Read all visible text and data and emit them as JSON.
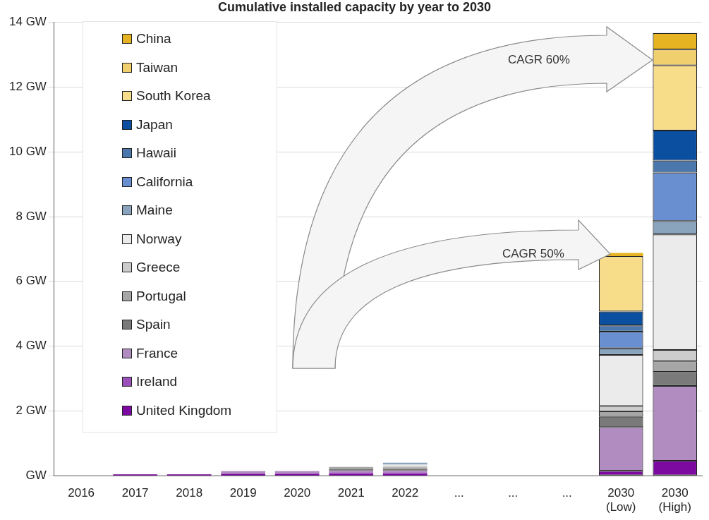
{
  "chart_data": {
    "type": "bar",
    "title": "Cumulative installed capacity by year to 2030",
    "stacked": true,
    "grid": "y",
    "legend": "top left",
    "categories": [
      "2016",
      "2017",
      "2018",
      "2019",
      "2020",
      "2021",
      "2022",
      "...",
      "...",
      "...",
      "2030 (Low)",
      "2030 (High)"
    ],
    "ylim": [
      0,
      14
    ],
    "yticks": [
      {
        "value": 0,
        "label": "GW"
      },
      {
        "value": 2,
        "label": "2 GW"
      },
      {
        "value": 4,
        "label": "4 GW"
      },
      {
        "value": 6,
        "label": "6 GW"
      },
      {
        "value": 8,
        "label": "8 GW"
      },
      {
        "value": 10,
        "label": "10 GW"
      },
      {
        "value": 12,
        "label": "12 GW"
      },
      {
        "value": 14,
        "label": "14 GW"
      }
    ],
    "annotations": [
      "CAGR 60%",
      "CAGR 50%"
    ],
    "series": [
      {
        "name": "United Kingdom",
        "color": "#7d0aa0",
        "values": [
          null,
          0.04,
          0.04,
          0.06,
          0.06,
          0.06,
          0.06,
          null,
          null,
          null,
          0.15,
          0.46
        ]
      },
      {
        "name": "Ireland",
        "color": "#9a50b8",
        "values": [
          null,
          null,
          null,
          null,
          null,
          0.04,
          0.04,
          null,
          null,
          null,
          null,
          null
        ]
      },
      {
        "name": "France",
        "color": "#b08cc0",
        "values": [
          null,
          null,
          null,
          0.08,
          0.08,
          0.05,
          0.05,
          null,
          null,
          null,
          1.35,
          2.31
        ]
      },
      {
        "name": "Spain",
        "color": "#7a7a7a",
        "values": [
          null,
          null,
          null,
          null,
          null,
          0.06,
          0.06,
          null,
          null,
          null,
          0.32,
          0.43
        ]
      },
      {
        "name": "Portugal",
        "color": "#a6a6a6",
        "values": [
          null,
          null,
          null,
          null,
          null,
          0.06,
          0.05,
          null,
          null,
          null,
          0.17,
          0.33
        ]
      },
      {
        "name": "Greece",
        "color": "#cccccc",
        "values": [
          null,
          null,
          null,
          null,
          null,
          null,
          0.04,
          null,
          null,
          null,
          0.16,
          0.35
        ]
      },
      {
        "name": "Norway",
        "color": "#ebebeb",
        "values": [
          null,
          null,
          null,
          null,
          null,
          null,
          0.04,
          null,
          null,
          null,
          1.58,
          3.57
        ]
      },
      {
        "name": "Maine",
        "color": "#8aa4bd",
        "values": [
          null,
          null,
          null,
          null,
          null,
          null,
          0.06,
          null,
          null,
          null,
          0.2,
          0.41
        ]
      },
      {
        "name": "California",
        "color": "#6a8fd0",
        "values": [
          null,
          null,
          null,
          null,
          null,
          null,
          null,
          null,
          null,
          null,
          0.52,
          1.5
        ]
      },
      {
        "name": "Hawaii",
        "color": "#4a78ad",
        "values": [
          null,
          null,
          null,
          null,
          null,
          null,
          null,
          null,
          null,
          null,
          0.19,
          0.37
        ]
      },
      {
        "name": "Japan",
        "color": "#0b4fa0",
        "values": [
          null,
          null,
          null,
          null,
          null,
          null,
          null,
          null,
          null,
          null,
          0.43,
          0.93
        ]
      },
      {
        "name": "South Korea",
        "color": "#f7dc8a",
        "values": [
          null,
          null,
          null,
          null,
          null,
          null,
          null,
          null,
          null,
          null,
          1.71,
          2.01
        ]
      },
      {
        "name": "Taiwan",
        "color": "#f0cf6e",
        "values": [
          null,
          null,
          null,
          null,
          null,
          null,
          null,
          null,
          null,
          null,
          null,
          0.49
        ]
      },
      {
        "name": "China",
        "color": "#e6b322",
        "values": [
          null,
          null,
          null,
          null,
          null,
          null,
          null,
          null,
          null,
          null,
          0.1,
          0.51
        ]
      }
    ]
  }
}
